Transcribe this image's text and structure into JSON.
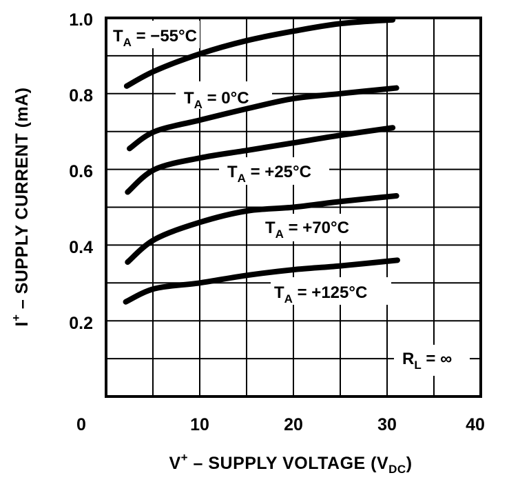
{
  "chart_data": {
    "type": "line",
    "title": "",
    "xlabel": "V+ – SUPPLY VOLTAGE (VDC)",
    "xlabel_parts": {
      "main": "V",
      "sup": "+",
      "rest": " – SUPPLY VOLTAGE (V",
      "sub": "DC",
      "close": ")"
    },
    "ylabel": "I+ – SUPPLY CURRENT (mA)",
    "ylabel_parts": {
      "main": "I",
      "sup": "+",
      "rest": " – SUPPLY CURRENT (mA)"
    },
    "xlim": [
      0,
      40
    ],
    "ylim": [
      0,
      1.0
    ],
    "x_ticks": [
      0,
      10,
      20,
      30,
      40
    ],
    "x_tick_labels": [
      "0",
      "10",
      "20",
      "30",
      "40"
    ],
    "y_ticks": [
      0.2,
      0.4,
      0.6,
      0.8,
      1.0
    ],
    "y_tick_labels": [
      "0.2",
      "0.4",
      "0.6",
      "0.8",
      "1.0"
    ],
    "grid": {
      "on": true,
      "x_step": 5,
      "y_step": 0.1
    },
    "legend_position": "inline labels",
    "annotation": {
      "text": "RL = ∞",
      "main": "R",
      "sub": "L",
      "rest": " = ∞"
    },
    "series": [
      {
        "name": "TA = −55°C",
        "label_main": "T",
        "label_sub": "A",
        "label_rest": " = −55°C",
        "x": [
          2.2,
          5.2,
          10,
          15,
          20,
          25,
          30.6
        ],
        "y": [
          0.82,
          0.86,
          0.905,
          0.94,
          0.965,
          0.985,
          0.995
        ]
      },
      {
        "name": "TA = 0°C",
        "label_main": "T",
        "label_sub": "A",
        "label_rest": " = 0°C",
        "x": [
          2.5,
          5.2,
          10,
          15,
          20,
          25,
          31
        ],
        "y": [
          0.655,
          0.7,
          0.73,
          0.76,
          0.787,
          0.8,
          0.815
        ]
      },
      {
        "name": "TA = +25°C",
        "label_main": "T",
        "label_sub": "A",
        "label_rest": " = +25°C",
        "x": [
          2.3,
          5.2,
          10,
          15,
          20,
          25,
          30.6
        ],
        "y": [
          0.54,
          0.6,
          0.63,
          0.65,
          0.67,
          0.69,
          0.71
        ]
      },
      {
        "name": "TA = +70°C",
        "label_main": "T",
        "label_sub": "A",
        "label_rest": " = +70°C",
        "x": [
          2.3,
          5.2,
          10,
          15,
          20,
          25,
          31
        ],
        "y": [
          0.355,
          0.415,
          0.46,
          0.49,
          0.5,
          0.515,
          0.53
        ]
      },
      {
        "name": "TA = +125°C",
        "label_main": "T",
        "label_sub": "A",
        "label_rest": " = +125°C",
        "x": [
          2.1,
          5.2,
          10,
          15,
          20,
          25,
          31.1
        ],
        "y": [
          0.25,
          0.285,
          0.3,
          0.32,
          0.335,
          0.345,
          0.36
        ]
      }
    ]
  },
  "colors": {
    "ink": "#000000",
    "background": "#ffffff"
  }
}
